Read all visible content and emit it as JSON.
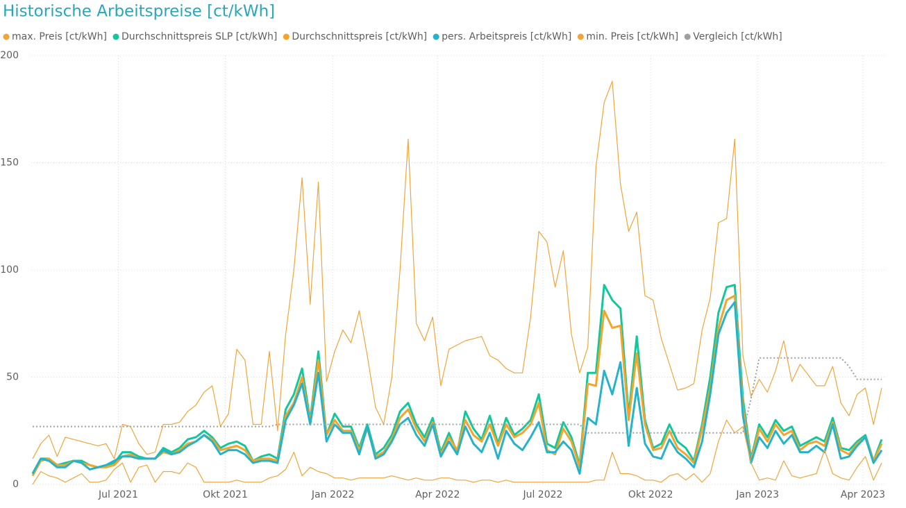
{
  "chart_data": {
    "type": "line",
    "title": "Historische Arbeitspreise [ct/kWh]",
    "xlim": [
      0,
      104
    ],
    "xticks": [
      {
        "value": 10.5,
        "label": "Jul 2021"
      },
      {
        "value": 23.6,
        "label": "Okt 2021"
      },
      {
        "value": 36.8,
        "label": "Jan 2022"
      },
      {
        "value": 49.6,
        "label": "Apr 2022"
      },
      {
        "value": 62.5,
        "label": "Jul 2022"
      },
      {
        "value": 75.7,
        "label": "Okt 2022"
      },
      {
        "value": 88.8,
        "label": "Jan 2023"
      },
      {
        "value": 101.7,
        "label": "Apr 2023"
      }
    ],
    "ylim": [
      0,
      200
    ],
    "yticks": [
      0,
      50,
      100,
      150,
      200
    ],
    "grid": true,
    "legend": "top-left",
    "series": [
      {
        "name": "max. Preis [ct/kWh]",
        "color": "#eea63a",
        "line_width": 1.2,
        "style": "solid",
        "values": [
          12,
          19,
          23,
          13,
          22,
          21,
          20,
          19,
          18,
          19,
          12,
          28,
          27,
          19,
          14,
          15,
          28,
          28,
          29,
          34,
          37,
          43,
          46,
          27,
          33,
          63,
          58,
          28,
          28,
          62,
          25,
          70,
          100,
          143,
          84,
          141,
          48,
          62,
          72,
          66,
          81,
          60,
          36,
          28,
          50,
          100,
          161,
          75,
          67,
          78,
          46,
          63,
          65,
          67,
          68,
          69,
          60,
          58,
          54,
          52,
          52,
          78,
          118,
          113,
          92,
          109,
          70,
          52,
          64,
          148,
          178,
          188,
          140,
          118,
          127,
          88,
          86,
          68,
          56,
          44,
          45,
          47,
          72,
          87,
          122,
          124,
          161,
          60,
          41,
          49,
          43,
          53,
          67,
          48,
          56,
          51,
          46,
          46,
          55,
          38,
          32,
          42,
          45,
          28,
          45
        ]
      },
      {
        "name": "Durchschnittspreis SLP [ct/kWh]",
        "color": "#14c79b",
        "line_width": 3,
        "style": "solid",
        "values": [
          5,
          12,
          12,
          9,
          10,
          11,
          11,
          9,
          8,
          9,
          10,
          15,
          15,
          13,
          12,
          12,
          17,
          15,
          17,
          21,
          22,
          25,
          22,
          17,
          19,
          20,
          18,
          11,
          13,
          14,
          12,
          35,
          42,
          54,
          30,
          62,
          23,
          33,
          27,
          27,
          17,
          28,
          14,
          17,
          23,
          34,
          38,
          28,
          22,
          31,
          15,
          24,
          15,
          34,
          26,
          21,
          32,
          19,
          31,
          23,
          26,
          30,
          42,
          19,
          17,
          29,
          22,
          9,
          52,
          52,
          93,
          86,
          82,
          32,
          69,
          30,
          17,
          19,
          28,
          20,
          17,
          11,
          28,
          50,
          80,
          92,
          93,
          40,
          12,
          28,
          22,
          30,
          25,
          27,
          18,
          20,
          22,
          20,
          31,
          17,
          16,
          20,
          23,
          11,
          21
        ]
      },
      {
        "name": "Durchschnittspreis [ct/kWh]",
        "color": "#f2a52a",
        "line_width": 3,
        "style": "solid",
        "values": [
          4,
          11,
          12,
          9,
          9,
          11,
          10,
          9,
          8,
          8,
          9,
          13,
          14,
          12,
          12,
          12,
          15,
          14,
          16,
          19,
          20,
          23,
          21,
          16,
          17,
          18,
          16,
          11,
          12,
          12,
          11,
          32,
          38,
          50,
          29,
          58,
          23,
          30,
          25,
          25,
          16,
          26,
          13,
          15,
          21,
          31,
          35,
          26,
          20,
          29,
          14,
          22,
          16,
          30,
          23,
          20,
          28,
          18,
          28,
          22,
          24,
          28,
          38,
          16,
          14,
          26,
          20,
          8,
          47,
          46,
          81,
          73,
          74,
          30,
          61,
          28,
          16,
          17,
          25,
          17,
          14,
          10,
          26,
          45,
          73,
          86,
          88,
          36,
          11,
          26,
          20,
          28,
          23,
          25,
          16,
          19,
          20,
          18,
          29,
          16,
          14,
          19,
          22,
          11,
          19
        ]
      },
      {
        "name": "pers. Arbeitspreis [ct/kWh]",
        "color": "#26b3c9",
        "line_width": 3,
        "style": "solid",
        "values": [
          5,
          12,
          11,
          8,
          8,
          11,
          10,
          7,
          8,
          9,
          11,
          13,
          13,
          12,
          12,
          12,
          16,
          14,
          15,
          18,
          20,
          23,
          20,
          14,
          16,
          16,
          14,
          10,
          11,
          11,
          10,
          30,
          37,
          47,
          28,
          52,
          20,
          28,
          24,
          24,
          14,
          27,
          12,
          14,
          20,
          28,
          31,
          23,
          18,
          28,
          13,
          20,
          14,
          27,
          19,
          15,
          24,
          12,
          25,
          19,
          16,
          22,
          29,
          15,
          15,
          20,
          16,
          5,
          31,
          28,
          53,
          42,
          57,
          18,
          45,
          19,
          13,
          12,
          21,
          15,
          12,
          8,
          20,
          42,
          70,
          80,
          85,
          32,
          10,
          22,
          17,
          25,
          19,
          23,
          15,
          15,
          18,
          15,
          28,
          12,
          13,
          18,
          22,
          10,
          16
        ]
      },
      {
        "name": "min. Preis [ct/kWh]",
        "color": "#eea63a",
        "line_width": 1.2,
        "style": "solid",
        "values": [
          0,
          6,
          4,
          3,
          1,
          3,
          5,
          1,
          1,
          2,
          7,
          10,
          1,
          8,
          9,
          1,
          6,
          6,
          5,
          10,
          8,
          1,
          1,
          1,
          1,
          2,
          1,
          1,
          1,
          3,
          4,
          7,
          15,
          4,
          8,
          6,
          5,
          3,
          3,
          2,
          3,
          3,
          3,
          3,
          4,
          3,
          2,
          3,
          2,
          2,
          3,
          3,
          2,
          2,
          1,
          2,
          2,
          1,
          2,
          1,
          1,
          1,
          1,
          1,
          1,
          1,
          1,
          1,
          1,
          2,
          2,
          15,
          5,
          5,
          4,
          2,
          2,
          1,
          4,
          5,
          2,
          5,
          1,
          5,
          20,
          30,
          24,
          27,
          10,
          2,
          3,
          2,
          11,
          4,
          3,
          4,
          5,
          16,
          5,
          3,
          2,
          8,
          13,
          2,
          10
        ]
      },
      {
        "name": "Vergleich [ct/kWh]",
        "color": "#a0a0a0",
        "line_width": 2,
        "style": "dotted",
        "values": [
          27,
          27,
          27,
          27,
          27,
          27,
          27,
          27,
          27,
          27,
          27,
          27,
          27,
          27,
          27,
          27,
          27,
          27,
          27,
          27,
          27,
          27,
          27,
          27,
          27,
          27,
          27,
          27,
          27,
          27,
          28,
          28,
          28,
          28,
          28,
          28,
          28,
          28,
          28,
          28,
          28,
          28,
          28,
          28,
          28,
          28,
          28,
          28,
          28,
          28,
          28,
          28,
          28,
          28,
          28,
          28,
          28,
          28,
          28,
          28,
          28,
          28,
          28,
          28,
          28,
          28,
          28,
          28,
          24,
          24,
          24,
          24,
          24,
          24,
          24,
          24,
          24,
          24,
          24,
          24,
          24,
          24,
          24,
          24,
          24,
          24,
          24,
          24,
          40,
          59,
          59,
          59,
          59,
          59,
          59,
          59,
          59,
          59,
          59,
          59,
          55,
          49,
          49,
          49,
          49
        ]
      }
    ]
  }
}
